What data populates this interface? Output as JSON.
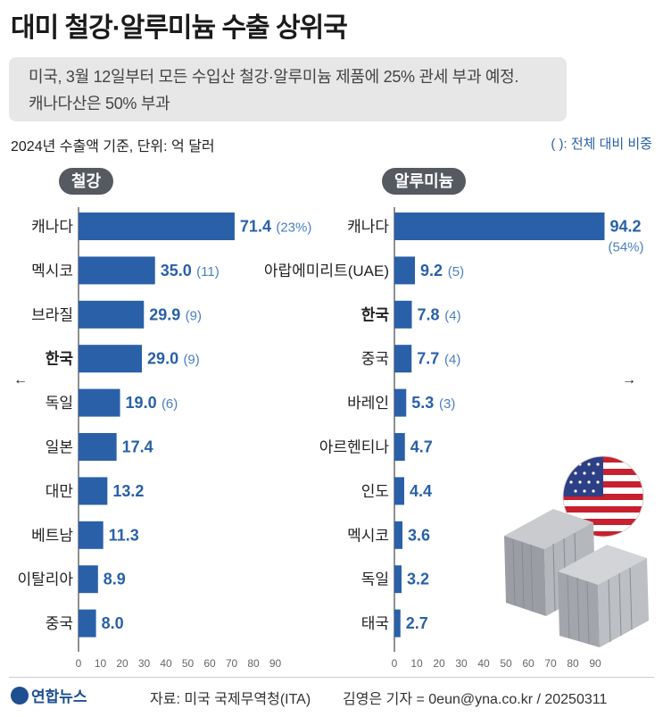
{
  "header": {
    "title": "대미 철강·알루미늄 수출 상위국",
    "subtitle_line1": "미국, 3월 12일부터 모든 수입산 철강·알루미늄 제품에 25% 관세 부과 예정.",
    "subtitle_line2": "캐나다산은 50% 부과",
    "basis": "2024년 수출액 기준, 단위: 억 달러",
    "paren_note": "( ): 전체 대비 비중"
  },
  "footer": {
    "logo": "연합뉴스",
    "source": "자료: 미국 국제무역청(ITA)",
    "credit": "김영은 기자 = 0eun@yna.co.kr / 20250311"
  },
  "colors": {
    "bar": "#2a60a8",
    "value": "#2a60a8",
    "share": "#4a7fc1",
    "axis": "#222222"
  },
  "chart_data": [
    {
      "type": "bar",
      "orientation": "horizontal",
      "title": "철강",
      "categories": [
        "캐나다",
        "멕시코",
        "브라질",
        "한국",
        "독일",
        "일본",
        "대만",
        "베트남",
        "이탈리아",
        "중국"
      ],
      "values": [
        71.4,
        35.0,
        29.9,
        29.0,
        19.0,
        17.4,
        13.2,
        11.3,
        8.9,
        8.0
      ],
      "value_labels": [
        "71.4",
        "35.0",
        "29.9",
        "29.0",
        "19.0",
        "17.4",
        "13.2",
        "11.3",
        "8.9",
        "8.0"
      ],
      "share_labels": [
        "(23%)",
        "(11)",
        "(9)",
        "(9)",
        "(6)",
        "",
        "",
        "",
        "",
        ""
      ],
      "highlight": "한국",
      "xlim": [
        0,
        90
      ],
      "xticks": [
        "0",
        "10",
        "20",
        "30",
        "40",
        "50",
        "60",
        "70",
        "80",
        "90"
      ]
    },
    {
      "type": "bar",
      "orientation": "horizontal",
      "title": "알루미늄",
      "categories": [
        "캐나다",
        "아랍에미리트(UAE)",
        "한국",
        "중국",
        "바레인",
        "아르헨티나",
        "인도",
        "멕시코",
        "독일",
        "태국"
      ],
      "values": [
        94.2,
        9.2,
        7.8,
        7.7,
        5.3,
        4.7,
        4.4,
        3.6,
        3.2,
        2.7
      ],
      "value_labels": [
        "94.2",
        "9.2",
        "7.8",
        "7.7",
        "5.3",
        "4.7",
        "4.4",
        "3.6",
        "3.2",
        "2.7"
      ],
      "share_labels": [
        "(54%)",
        "(5)",
        "(4)",
        "(4)",
        "(3)",
        "",
        "",
        "",
        "",
        ""
      ],
      "highlight": "한국",
      "xlim": [
        0,
        90
      ],
      "xticks": [
        "0",
        "10",
        "20",
        "30",
        "40",
        "50",
        "60",
        "70",
        "80",
        "90"
      ]
    }
  ]
}
